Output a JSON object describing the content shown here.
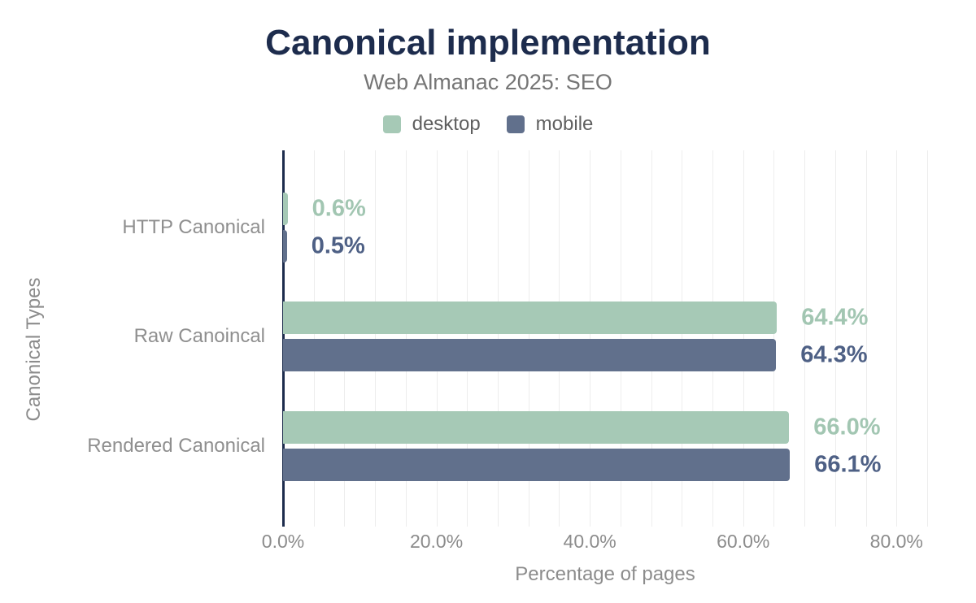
{
  "header": {
    "title": "Canonical implementation",
    "subtitle": "Web Almanac 2025: SEO"
  },
  "chart_data": {
    "type": "bar",
    "orientation": "horizontal",
    "title": "Canonical implementation",
    "subtitle": "Web Almanac 2025: SEO",
    "categories": [
      "HTTP Canonical",
      "Raw Canoincal",
      "Rendered Canonical"
    ],
    "series": [
      {
        "name": "desktop",
        "color": "#a6c9b6",
        "label_color": "#a2c6b2",
        "values": [
          0.6,
          64.4,
          66.0
        ],
        "labels": [
          "0.6%",
          "64.4%",
          "66.0%"
        ]
      },
      {
        "name": "mobile",
        "color": "#61708c",
        "label_color": "#4e6085",
        "values": [
          0.5,
          64.3,
          66.1
        ],
        "labels": [
          "0.5%",
          "64.3%",
          "66.1%"
        ]
      }
    ],
    "xlabel": "Percentage of pages",
    "ylabel": "Canonical Types",
    "xlim": [
      0,
      84
    ],
    "x_ticks": [
      {
        "value": 0,
        "label": "0.0%"
      },
      {
        "value": 20,
        "label": "20.0%"
      },
      {
        "value": 40,
        "label": "40.0%"
      },
      {
        "value": 60,
        "label": "60.0%"
      },
      {
        "value": 80,
        "label": "80.0%"
      }
    ],
    "grid": true,
    "grid_step": 4,
    "legend_position": "top"
  },
  "colors": {
    "background": "#ffffff",
    "title": "#1d2c4d",
    "subtitle": "#757575",
    "legend_text": "#5f5f5f",
    "axis_line": "#1d2c4d",
    "gridline": "#ededed",
    "tick_label": "#8c8c8c",
    "category_label": "#8f8f8f",
    "axis_title": "#8c8c8c"
  }
}
